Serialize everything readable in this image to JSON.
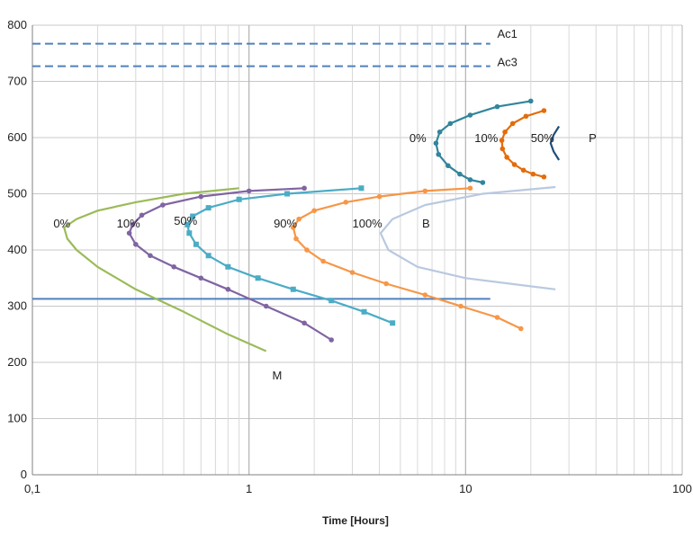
{
  "chart_data": {
    "type": "line",
    "title": "",
    "xlabel": "Time [Hours]",
    "ylabel": "",
    "x_scale": "log",
    "xlim": [
      0.1,
      100
    ],
    "ylim": [
      0,
      800
    ],
    "x_ticks": [
      "0,1",
      "1",
      "10",
      "100"
    ],
    "y_ticks": [
      "0",
      "100",
      "200",
      "300",
      "400",
      "500",
      "600",
      "700",
      "800"
    ],
    "grid": true,
    "legend": "none",
    "reference_lines": [
      {
        "name": "Ac1",
        "y": 767,
        "x_range": [
          0.1,
          13
        ],
        "style": "dashed",
        "color": "#4f81bd"
      },
      {
        "name": "Ac3",
        "y": 727,
        "x_range": [
          0.1,
          13
        ],
        "style": "dashed",
        "color": "#4f81bd"
      },
      {
        "name": "M",
        "y": 313,
        "x_range": [
          0.1,
          13
        ],
        "style": "solid",
        "color": "#4f81bd"
      }
    ],
    "series": [
      {
        "name": "0%",
        "color": "#9bbb59",
        "marker": "none",
        "x": [
          0.9,
          0.5,
          0.3,
          0.2,
          0.16,
          0.14,
          0.145,
          0.16,
          0.2,
          0.3,
          0.5,
          0.8,
          1.2
        ],
        "y": [
          510,
          500,
          485,
          470,
          455,
          440,
          420,
          400,
          370,
          330,
          290,
          250,
          220
        ]
      },
      {
        "name": "10%",
        "color": "#8064a2",
        "marker": "dot",
        "x": [
          1.8,
          1.0,
          0.6,
          0.4,
          0.32,
          0.29,
          0.28,
          0.3,
          0.35,
          0.45,
          0.6,
          0.8,
          1.2,
          1.8,
          2.4
        ],
        "y": [
          510,
          505,
          495,
          480,
          462,
          445,
          430,
          410,
          390,
          370,
          350,
          330,
          300,
          270,
          240
        ]
      },
      {
        "name": "50%",
        "color": "#4bacc6",
        "marker": "square",
        "x": [
          3.3,
          1.5,
          0.9,
          0.65,
          0.55,
          0.52,
          0.53,
          0.57,
          0.65,
          0.8,
          1.1,
          1.6,
          2.4,
          3.4,
          4.6
        ],
        "y": [
          510,
          500,
          490,
          475,
          460,
          445,
          430,
          410,
          390,
          370,
          350,
          330,
          310,
          290,
          270
        ]
      },
      {
        "name": "90%",
        "color": "#f79646",
        "marker": "dot",
        "x": [
          10.5,
          6.5,
          4.0,
          2.8,
          2.0,
          1.7,
          1.6,
          1.65,
          1.85,
          2.2,
          3.0,
          4.3,
          6.5,
          9.5,
          14.0,
          18.0
        ],
        "y": [
          510,
          505,
          495,
          485,
          470,
          455,
          440,
          420,
          400,
          380,
          360,
          340,
          320,
          300,
          280,
          260
        ]
      },
      {
        "name": "100%",
        "color": "#b9c9e0",
        "marker": "none",
        "x": [
          26.0,
          12.0,
          6.5,
          4.6,
          4.05,
          4.4,
          6.0,
          10.0,
          16.0,
          26.0
        ],
        "y": [
          512,
          500,
          480,
          455,
          430,
          400,
          370,
          350,
          340,
          330
        ]
      },
      {
        "name": "0%",
        "color": "#31859c",
        "marker": "dot",
        "x": [
          20.0,
          14.0,
          10.5,
          8.5,
          7.6,
          7.3,
          7.5,
          8.3,
          9.4,
          10.5,
          12.0
        ],
        "y": [
          665,
          655,
          640,
          625,
          610,
          590,
          570,
          550,
          535,
          525,
          520
        ]
      },
      {
        "name": "10%",
        "color": "#e46c0a",
        "marker": "dot",
        "x": [
          23.0,
          19.0,
          16.5,
          15.2,
          14.7,
          14.8,
          15.5,
          16.8,
          18.5,
          20.5,
          23.0
        ],
        "y": [
          648,
          638,
          625,
          610,
          595,
          580,
          565,
          552,
          542,
          535,
          530
        ]
      },
      {
        "name": "50%",
        "color": "#1f4e79",
        "marker": "none",
        "x": [
          27.0,
          25.5,
          24.7,
          25.5,
          27.0
        ],
        "y": [
          620,
          605,
          590,
          575,
          560
        ]
      }
    ],
    "annotations": [
      {
        "text": "Ac1",
        "x": 14.0,
        "y": 778
      },
      {
        "text": "Ac3",
        "x": 14.0,
        "y": 727
      },
      {
        "text": "0%",
        "x": 0.125,
        "y": 440
      },
      {
        "text": "10%",
        "x": 0.245,
        "y": 440
      },
      {
        "text": "50%",
        "x": 0.45,
        "y": 445
      },
      {
        "text": "90%",
        "x": 1.3,
        "y": 440
      },
      {
        "text": "100%",
        "x": 3.0,
        "y": 440
      },
      {
        "text": "B",
        "x": 6.3,
        "y": 440
      },
      {
        "text": "0%",
        "x": 5.5,
        "y": 592
      },
      {
        "text": "10%",
        "x": 11.0,
        "y": 592
      },
      {
        "text": "50%",
        "x": 20.0,
        "y": 592
      },
      {
        "text": "P",
        "x": 37.0,
        "y": 592
      },
      {
        "text": "M",
        "x": 1.28,
        "y": 170
      }
    ]
  }
}
